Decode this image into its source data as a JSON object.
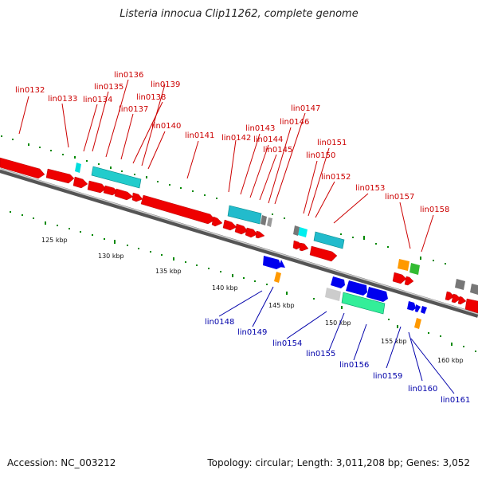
{
  "title": "Listeria innocua Clip11262, complete genome",
  "footer": {
    "accession": "Accession: NC_003212",
    "topology": "Topology: circular; Length: 3,011,208 bp; Genes: 3,052"
  },
  "colors": {
    "forward_label": "#cc0000",
    "reverse_label": "#0000aa",
    "forward_gene": "#ee0000",
    "reverse_gene": "#0000ee",
    "rna": "#00cccc",
    "axis": "#777777",
    "tick": "#008800"
  },
  "scale_labels": [
    "125 kbp",
    "130 kbp",
    "135 kbp",
    "140 kbp",
    "145 kbp",
    "150 kbp",
    "155 kbp",
    "160 kbp"
  ],
  "forward_labels": [
    "lin0132",
    "lin0133",
    "lin0134",
    "lin0135",
    "lin0136",
    "lin0137",
    "lin0138",
    "lin0139",
    "lin0140",
    "lin0141",
    "lin0142",
    "lin0143",
    "lin0144",
    "lin0145",
    "lin0146",
    "lin0147",
    "lin0150",
    "lin0151",
    "lin0152",
    "lin0153",
    "lin0157",
    "lin0158"
  ],
  "reverse_labels": [
    "lin0148",
    "lin0149",
    "lin0154",
    "lin0155",
    "lin0156",
    "lin0159",
    "lin0160",
    "lin0161"
  ]
}
